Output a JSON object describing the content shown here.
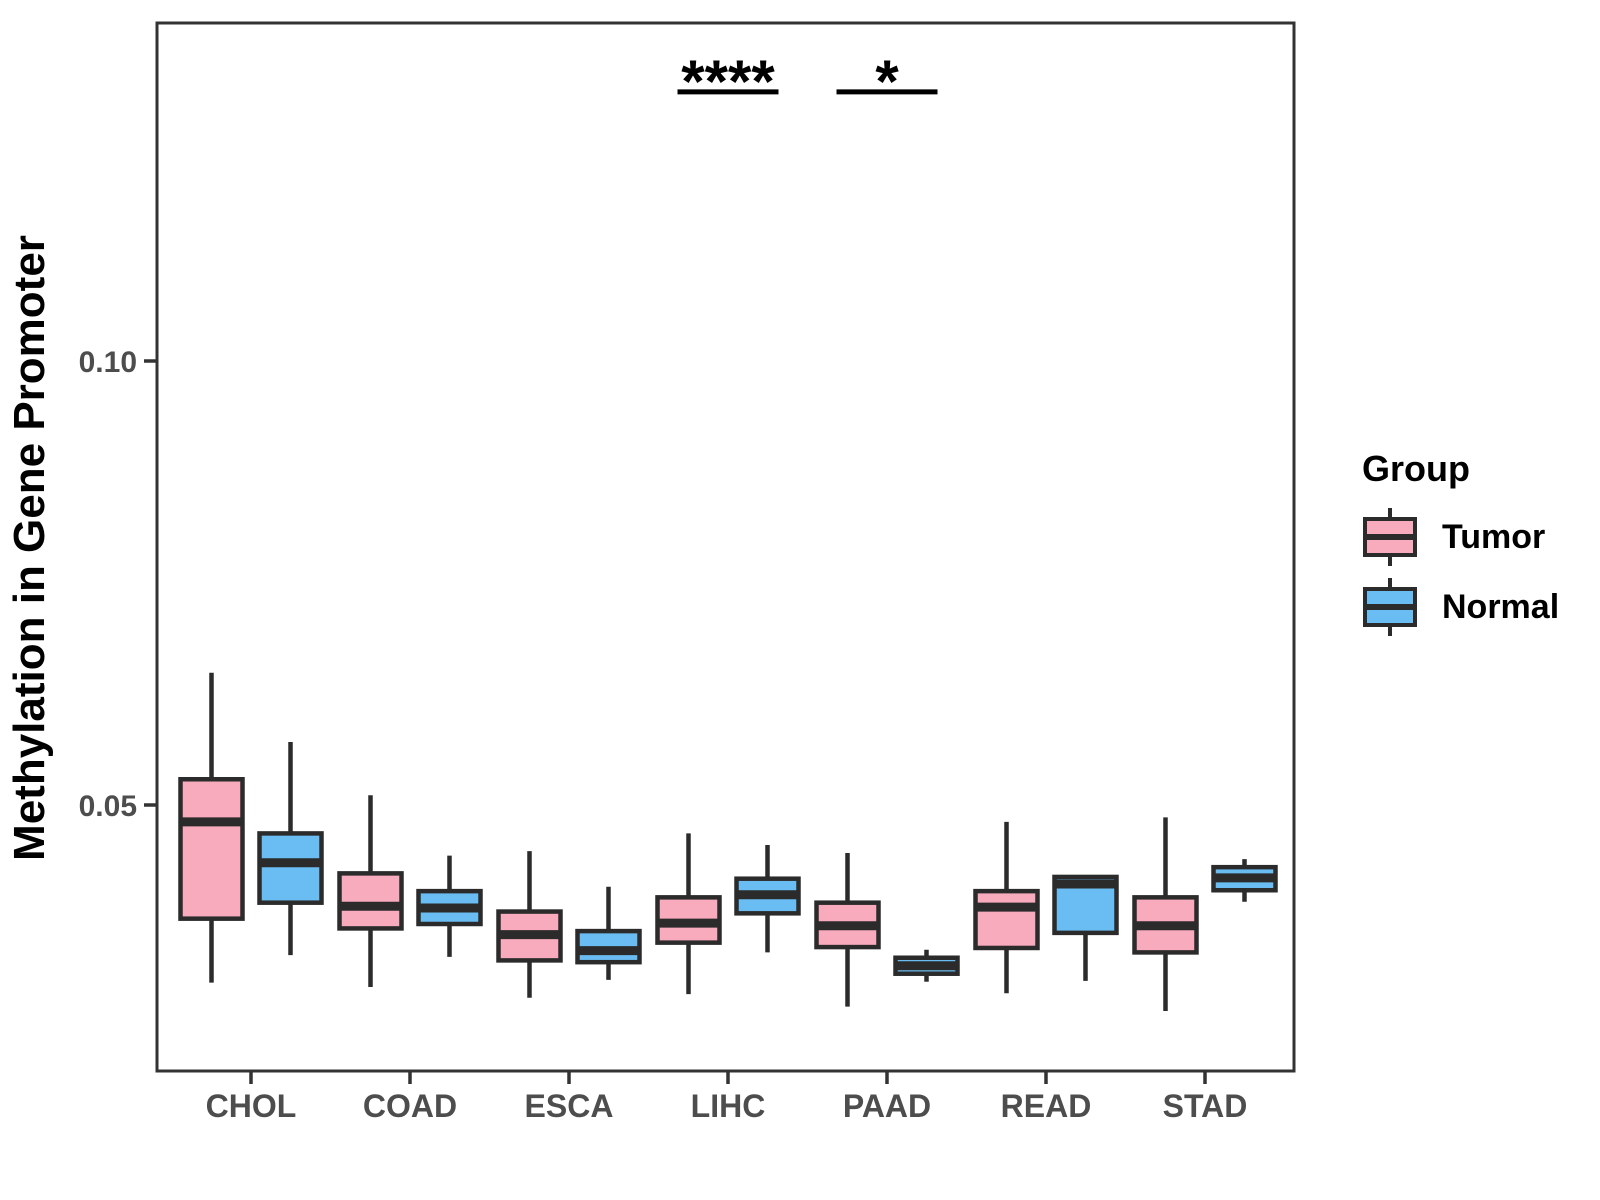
{
  "figure": {
    "y_axis_title": "Methylation in Gene Promoter",
    "legend_title": "Group"
  },
  "colors": {
    "tumor_fill": "#F9ABBE",
    "normal_fill": "#6ABDF2",
    "box_stroke": "#2B2B2B",
    "axis_line": "#333333",
    "axis_text": "#4D4D4D",
    "annotation": "#000000",
    "background": "#FFFFFF"
  },
  "chart_data": {
    "type": "grouped_boxplot",
    "title": "",
    "xlabel": "",
    "ylabel": "Methylation in Gene Promoter",
    "categories": [
      "CHOL",
      "COAD",
      "ESCA",
      "LIHC",
      "PAAD",
      "READ",
      "STAD"
    ],
    "groups": [
      "Tumor",
      "Normal"
    ],
    "ylim": [
      0.0199,
      0.1384
    ],
    "yticks": [
      0.05,
      0.1
    ],
    "ytick_labels": [
      "0.05",
      "0.10"
    ],
    "grid": false,
    "legend_position": "right",
    "series": [
      {
        "name": "Tumor",
        "color": "#F9ABBE",
        "boxes": [
          {
            "category": "CHOL",
            "whisker_low": 0.03,
            "q1": 0.0372,
            "median": 0.0481,
            "q3": 0.0529,
            "whisker_high": 0.0649
          },
          {
            "category": "COAD",
            "whisker_low": 0.0295,
            "q1": 0.0361,
            "median": 0.0386,
            "q3": 0.0423,
            "whisker_high": 0.0511
          },
          {
            "category": "ESCA",
            "whisker_low": 0.0283,
            "q1": 0.0325,
            "median": 0.0354,
            "q3": 0.038,
            "whisker_high": 0.0448
          },
          {
            "category": "LIHC",
            "whisker_low": 0.0287,
            "q1": 0.0345,
            "median": 0.0367,
            "q3": 0.0396,
            "whisker_high": 0.0468
          },
          {
            "category": "PAAD",
            "whisker_low": 0.0273,
            "q1": 0.034,
            "median": 0.0364,
            "q3": 0.039,
            "whisker_high": 0.0446
          },
          {
            "category": "READ",
            "whisker_low": 0.0288,
            "q1": 0.0339,
            "median": 0.0385,
            "q3": 0.0403,
            "whisker_high": 0.0481
          },
          {
            "category": "STAD",
            "whisker_low": 0.0268,
            "q1": 0.0334,
            "median": 0.0364,
            "q3": 0.0396,
            "whisker_high": 0.0486
          }
        ]
      },
      {
        "name": "Normal",
        "color": "#6ABDF2",
        "boxes": [
          {
            "category": "CHOL",
            "whisker_low": 0.0331,
            "q1": 0.039,
            "median": 0.0435,
            "q3": 0.0468,
            "whisker_high": 0.0571
          },
          {
            "category": "COAD",
            "whisker_low": 0.0329,
            "q1": 0.0366,
            "median": 0.0384,
            "q3": 0.0403,
            "whisker_high": 0.0443
          },
          {
            "category": "ESCA",
            "whisker_low": 0.0303,
            "q1": 0.0323,
            "median": 0.0336,
            "q3": 0.0358,
            "whisker_high": 0.0408
          },
          {
            "category": "LIHC",
            "whisker_low": 0.0334,
            "q1": 0.0378,
            "median": 0.0399,
            "q3": 0.0417,
            "whisker_high": 0.0455
          },
          {
            "category": "PAAD",
            "whisker_low": 0.0301,
            "q1": 0.031,
            "median": 0.0319,
            "q3": 0.0328,
            "whisker_high": 0.0337
          },
          {
            "category": "READ",
            "whisker_low": 0.0302,
            "q1": 0.0356,
            "median": 0.0411,
            "q3": 0.0419,
            "whisker_high": 0.0421
          },
          {
            "category": "STAD",
            "whisker_low": 0.0391,
            "q1": 0.0404,
            "median": 0.0418,
            "q3": 0.043,
            "whisker_high": 0.0439
          }
        ]
      }
    ],
    "annotations": [
      {
        "label": "****",
        "category": "LIHC",
        "y_value": 0.1303
      },
      {
        "label": "*",
        "category": "PAAD",
        "y_value": 0.1303
      }
    ]
  }
}
